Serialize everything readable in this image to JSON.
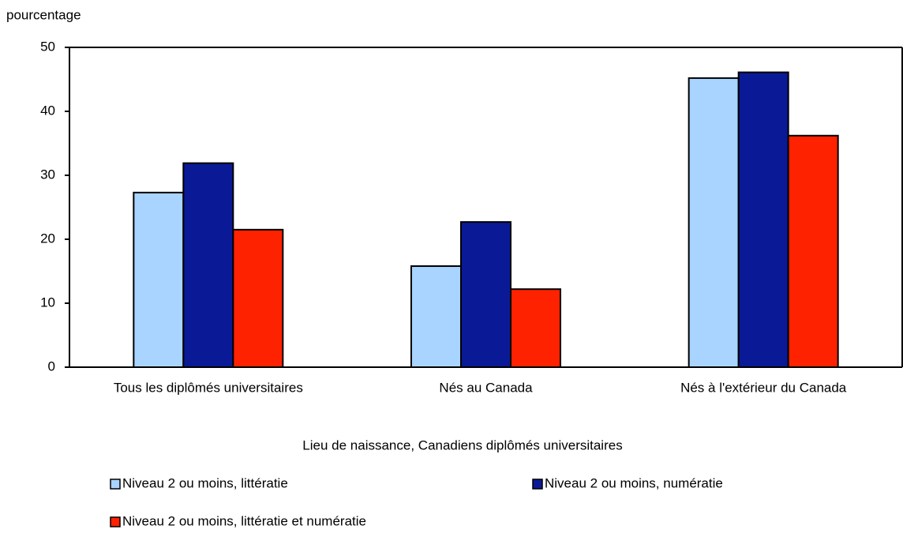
{
  "chart_data": {
    "type": "bar",
    "y_axis_label": "pourcentage",
    "x_axis_label": "Lieu de naissance, Canadiens diplômés universitaires",
    "categories": [
      "Tous les diplômés universitaires",
      "Nés au Canada",
      "Nés à l'extérieur du Canada"
    ],
    "series": [
      {
        "name": "Niveau 2 ou moins, littératie",
        "color": "#a8d4ff",
        "values": [
          27.3,
          15.8,
          45.2
        ]
      },
      {
        "name": "Niveau 2 ou moins, numératie",
        "color": "#0a1a96",
        "values": [
          31.9,
          22.7,
          46.1
        ]
      },
      {
        "name": "Niveau 2 ou moins, littératie et numératie",
        "color": "#ff2200",
        "values": [
          21.5,
          12.2,
          36.2
        ]
      }
    ],
    "ylim": [
      0,
      50
    ],
    "yticks": [
      0,
      10,
      20,
      30,
      40,
      50
    ]
  }
}
